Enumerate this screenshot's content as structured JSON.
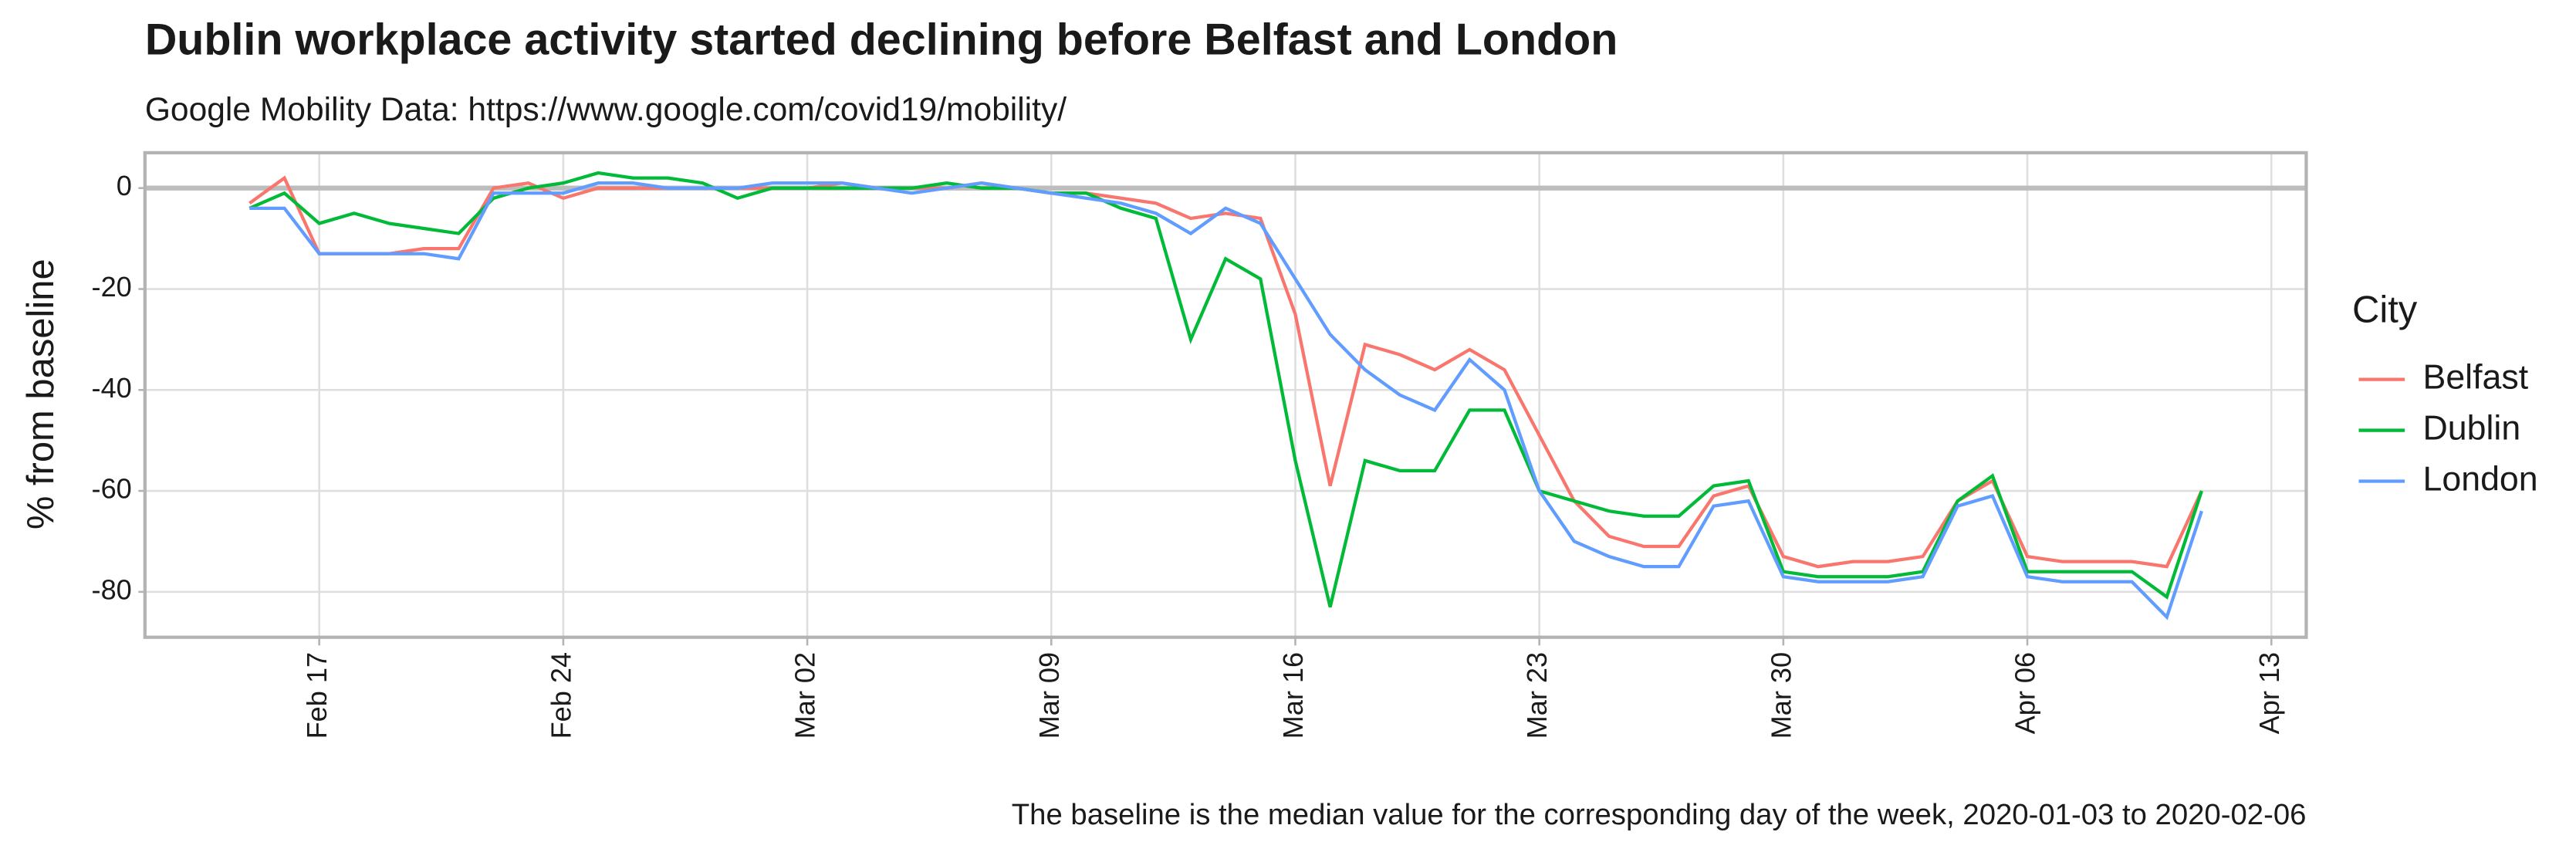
{
  "chart_data": {
    "type": "line",
    "title": "Dublin workplace activity started declining before Belfast and London",
    "subtitle": "Google Mobility Data: https://www.google.com/covid19/mobility/",
    "caption": "The baseline is the median value for the corresponding day of the week, 2020-01-03 to 2020-02-06",
    "y_label": "% from baseline",
    "legend_title": "City",
    "legend_position": "right",
    "grid": true,
    "x": [
      "Feb 15",
      "Feb 16",
      "Feb 17",
      "Feb 18",
      "Feb 19",
      "Feb 20",
      "Feb 21",
      "Feb 22",
      "Feb 23",
      "Feb 24",
      "Feb 25",
      "Feb 26",
      "Feb 27",
      "Feb 28",
      "Feb 29",
      "Mar 01",
      "Mar 02",
      "Mar 03",
      "Mar 04",
      "Mar 05",
      "Mar 06",
      "Mar 07",
      "Mar 08",
      "Mar 09",
      "Mar 10",
      "Mar 11",
      "Mar 12",
      "Mar 13",
      "Mar 14",
      "Mar 15",
      "Mar 16",
      "Mar 17",
      "Mar 18",
      "Mar 19",
      "Mar 20",
      "Mar 21",
      "Mar 22",
      "Mar 23",
      "Mar 24",
      "Mar 25",
      "Mar 26",
      "Mar 27",
      "Mar 28",
      "Mar 29",
      "Mar 30",
      "Mar 31",
      "Apr 01",
      "Apr 02",
      "Apr 03",
      "Apr 04",
      "Apr 05",
      "Apr 06",
      "Apr 07",
      "Apr 08",
      "Apr 09",
      "Apr 10",
      "Apr 11"
    ],
    "series": [
      {
        "name": "Belfast",
        "color": "#F8766D",
        "values": [
          -3,
          2,
          -13,
          -13,
          -13,
          -12,
          -12,
          0,
          1,
          -2,
          0,
          0,
          0,
          0,
          0,
          0,
          0,
          1,
          0,
          0,
          0,
          1,
          0,
          -1,
          -1,
          -2,
          -3,
          -6,
          -5,
          -6,
          -25,
          -59,
          -31,
          -33,
          -36,
          -32,
          -36,
          -49,
          -62,
          -69,
          -71,
          -71,
          -61,
          -59,
          -73,
          -75,
          -74,
          -74,
          -73,
          -62,
          -58,
          -73,
          -74,
          -74,
          -74,
          -75,
          -60
        ]
      },
      {
        "name": "Dublin",
        "color": "#00BA38",
        "values": [
          -4,
          -1,
          -7,
          -5,
          -7,
          -8,
          -9,
          -2,
          0,
          1,
          3,
          2,
          2,
          1,
          -2,
          0,
          0,
          0,
          0,
          0,
          1,
          0,
          0,
          -1,
          -1,
          -4,
          -6,
          -30,
          -14,
          -18,
          -54,
          -83,
          -54,
          -56,
          -56,
          -44,
          -44,
          -60,
          -62,
          -64,
          -65,
          -65,
          -59,
          -58,
          -76,
          -77,
          -77,
          -77,
          -76,
          -62,
          -57,
          -76,
          -76,
          -76,
          -76,
          -81,
          -60
        ]
      },
      {
        "name": "London",
        "color": "#619CFF",
        "values": [
          -4,
          -4,
          -13,
          -13,
          -13,
          -13,
          -14,
          -1,
          -1,
          -1,
          1,
          1,
          0,
          0,
          0,
          1,
          1,
          1,
          0,
          -1,
          0,
          1,
          0,
          -1,
          -2,
          -3,
          -5,
          -9,
          -4,
          -7,
          -18,
          -29,
          -36,
          -41,
          -44,
          -34,
          -40,
          -60,
          -70,
          -73,
          -75,
          -75,
          -63,
          -62,
          -77,
          -78,
          -78,
          -78,
          -77,
          -63,
          -61,
          -77,
          -78,
          -78,
          -78,
          -85,
          -64
        ]
      }
    ],
    "xlim": [
      "Feb 12",
      "Apr 14"
    ],
    "xticks": [
      "Feb 17",
      "Feb 24",
      "Mar 02",
      "Mar 09",
      "Mar 16",
      "Mar 23",
      "Mar 30",
      "Apr 06",
      "Apr 13"
    ],
    "ylim": [
      -89,
      7
    ],
    "yticks": [
      -80,
      -60,
      -40,
      -20,
      0
    ],
    "hline": 0
  }
}
